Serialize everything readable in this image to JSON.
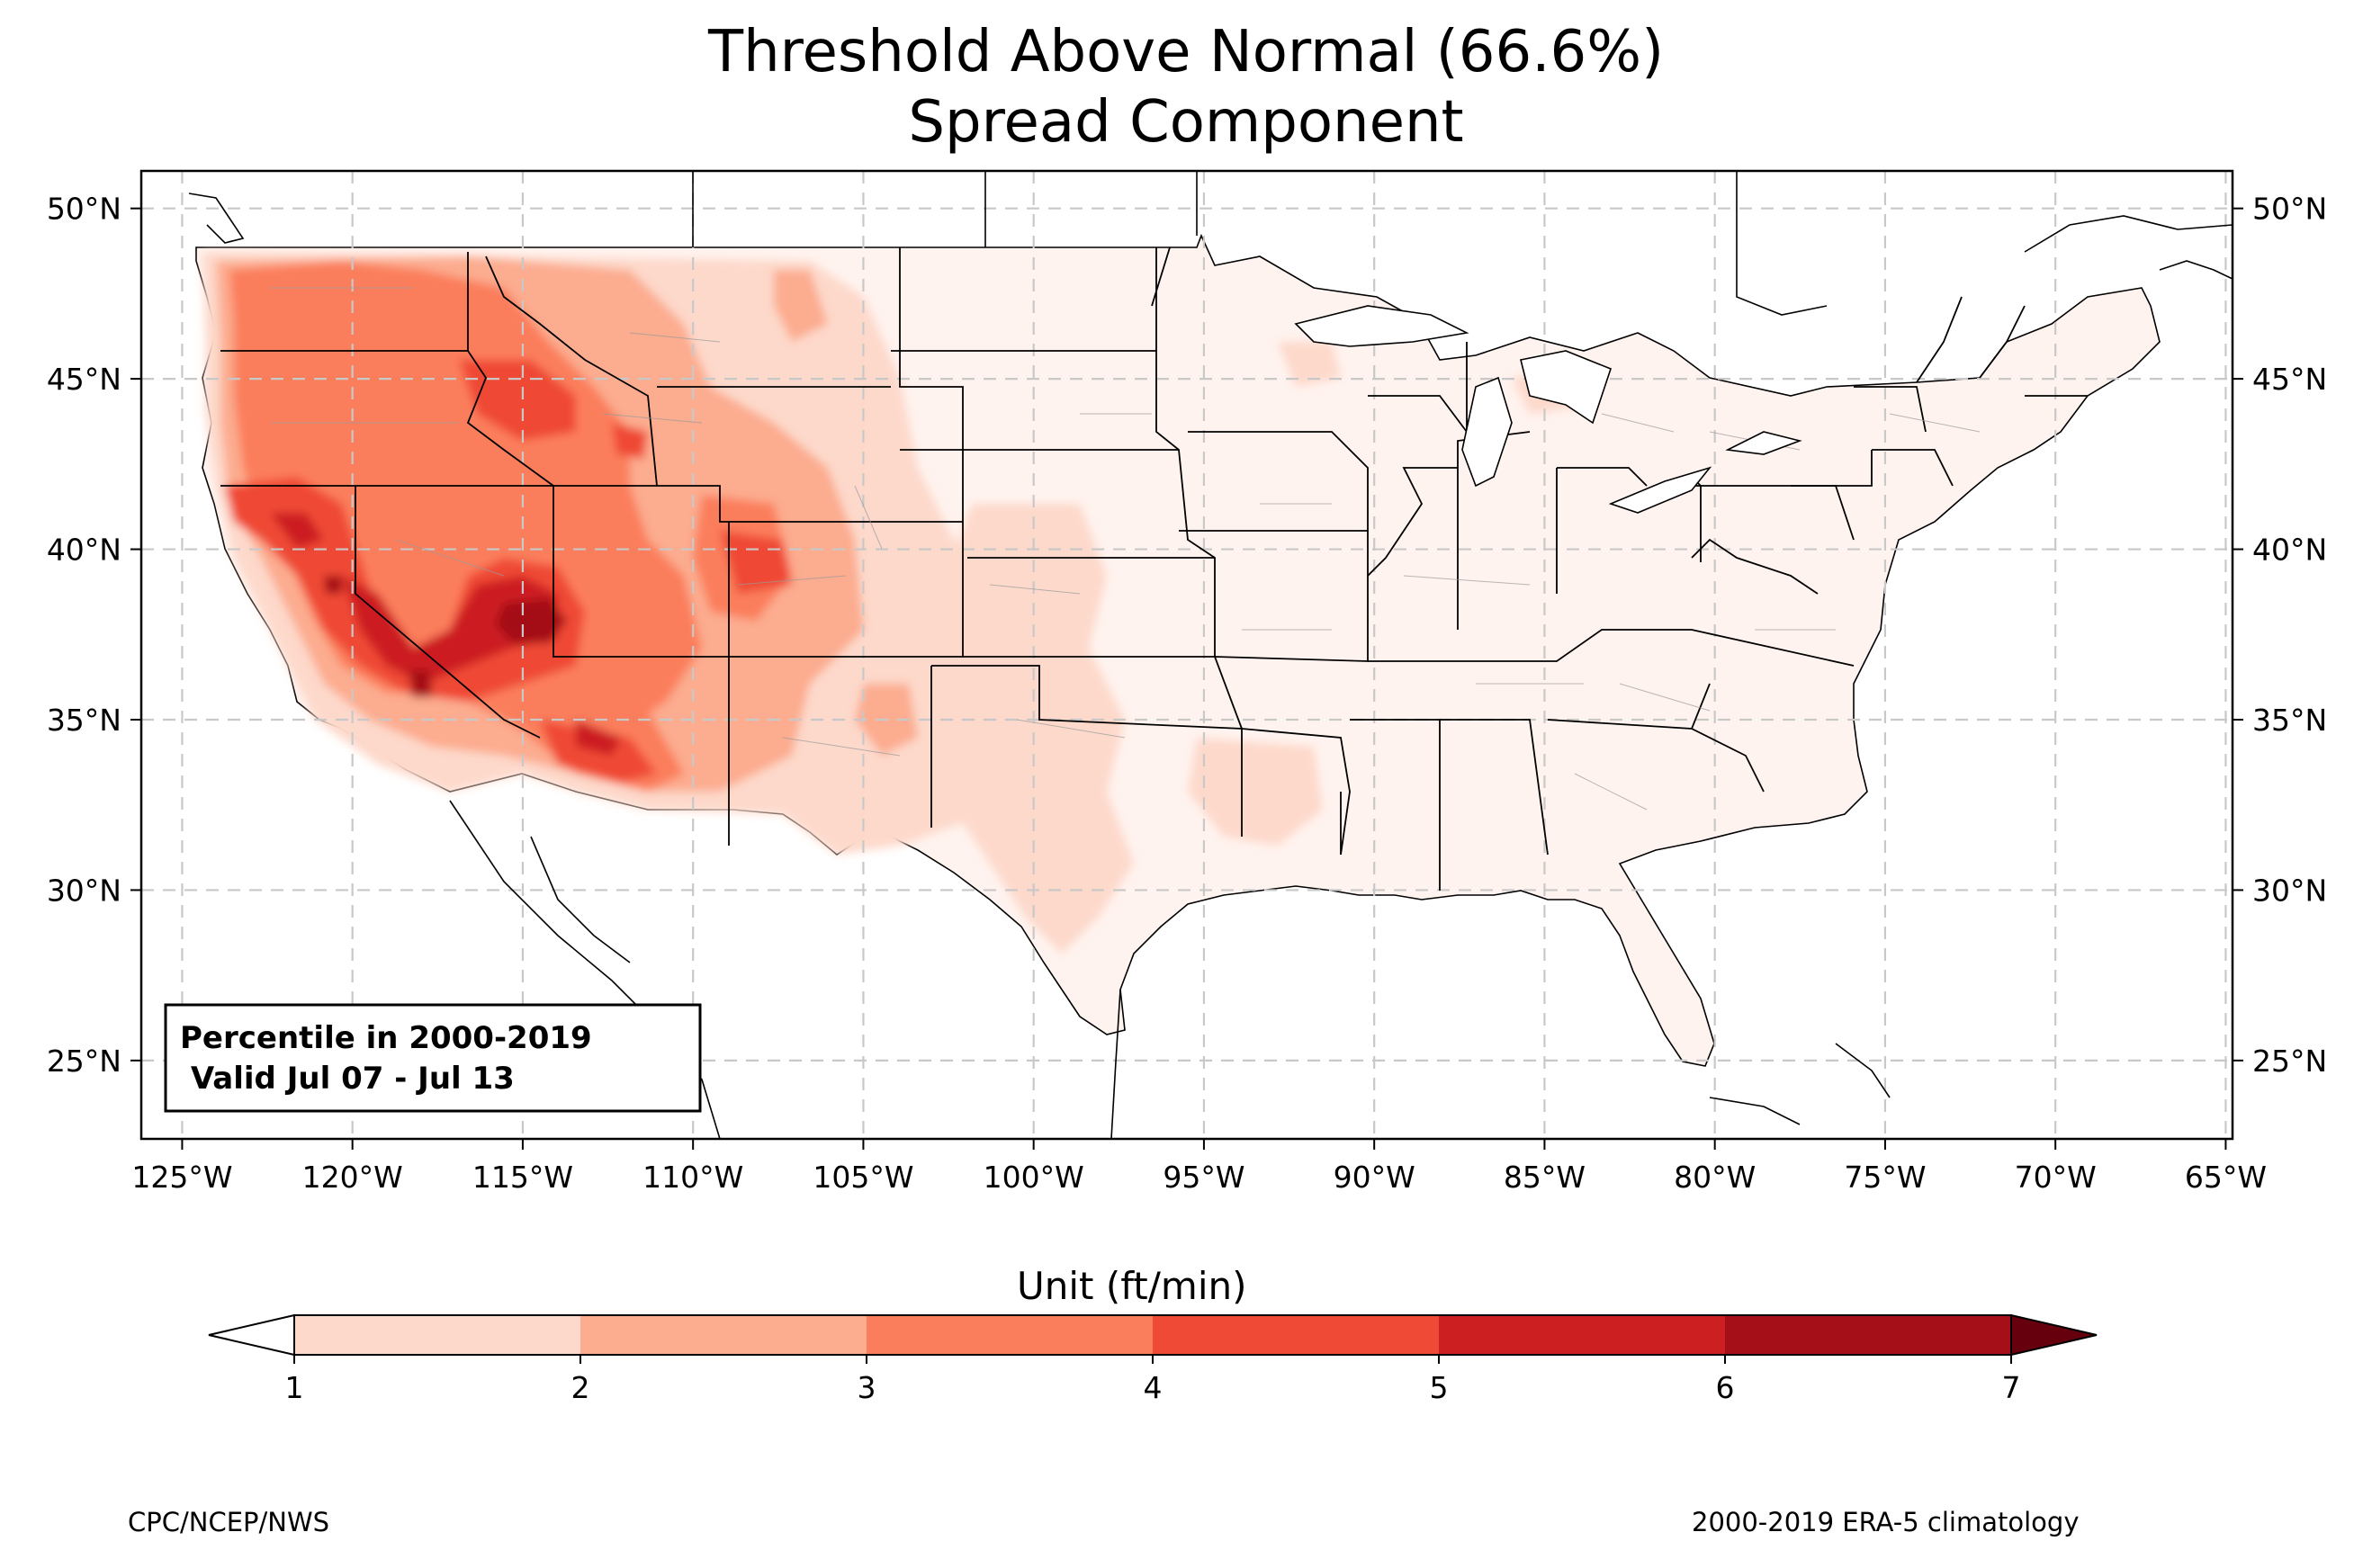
{
  "title": {
    "line1": "Threshold Above Normal (66.6%)",
    "line2": "Spread Component"
  },
  "map": {
    "lat_labels": [
      "50°N",
      "45°N",
      "40°N",
      "35°N",
      "30°N",
      "25°N"
    ],
    "lat_values": [
      50,
      45,
      40,
      35,
      30,
      25
    ],
    "lon_labels": [
      "125°W",
      "120°W",
      "115°W",
      "110°W",
      "105°W",
      "100°W",
      "95°W",
      "90°W",
      "85°W",
      "80°W",
      "75°W",
      "70°W",
      "65°W"
    ],
    "lon_values": [
      -125,
      -120,
      -115,
      -110,
      -105,
      -100,
      -95,
      -90,
      -85,
      -80,
      -75,
      -70,
      -65
    ],
    "extent": {
      "lon_min": -126.2,
      "lon_max": -64.8,
      "lat_min": 22.7,
      "lat_max": 51.1
    },
    "info_box": {
      "line1": "Percentile in 2000-2019",
      "line2": " Valid Jul 07 - Jul 13"
    }
  },
  "colorbar": {
    "label": "Unit (ft/min)",
    "ticks": [
      "1",
      "2",
      "3",
      "4",
      "5",
      "6",
      "7"
    ],
    "colors": [
      "#ffffff",
      "#fdd9cb",
      "#fcac8f",
      "#fb7e5c",
      "#ef4a36",
      "#cc1f22",
      "#a50f17",
      "#67000d"
    ]
  },
  "footer": {
    "left": "CPC/NCEP/NWS",
    "right": "2000-2019 ERA-5 climatology"
  }
}
